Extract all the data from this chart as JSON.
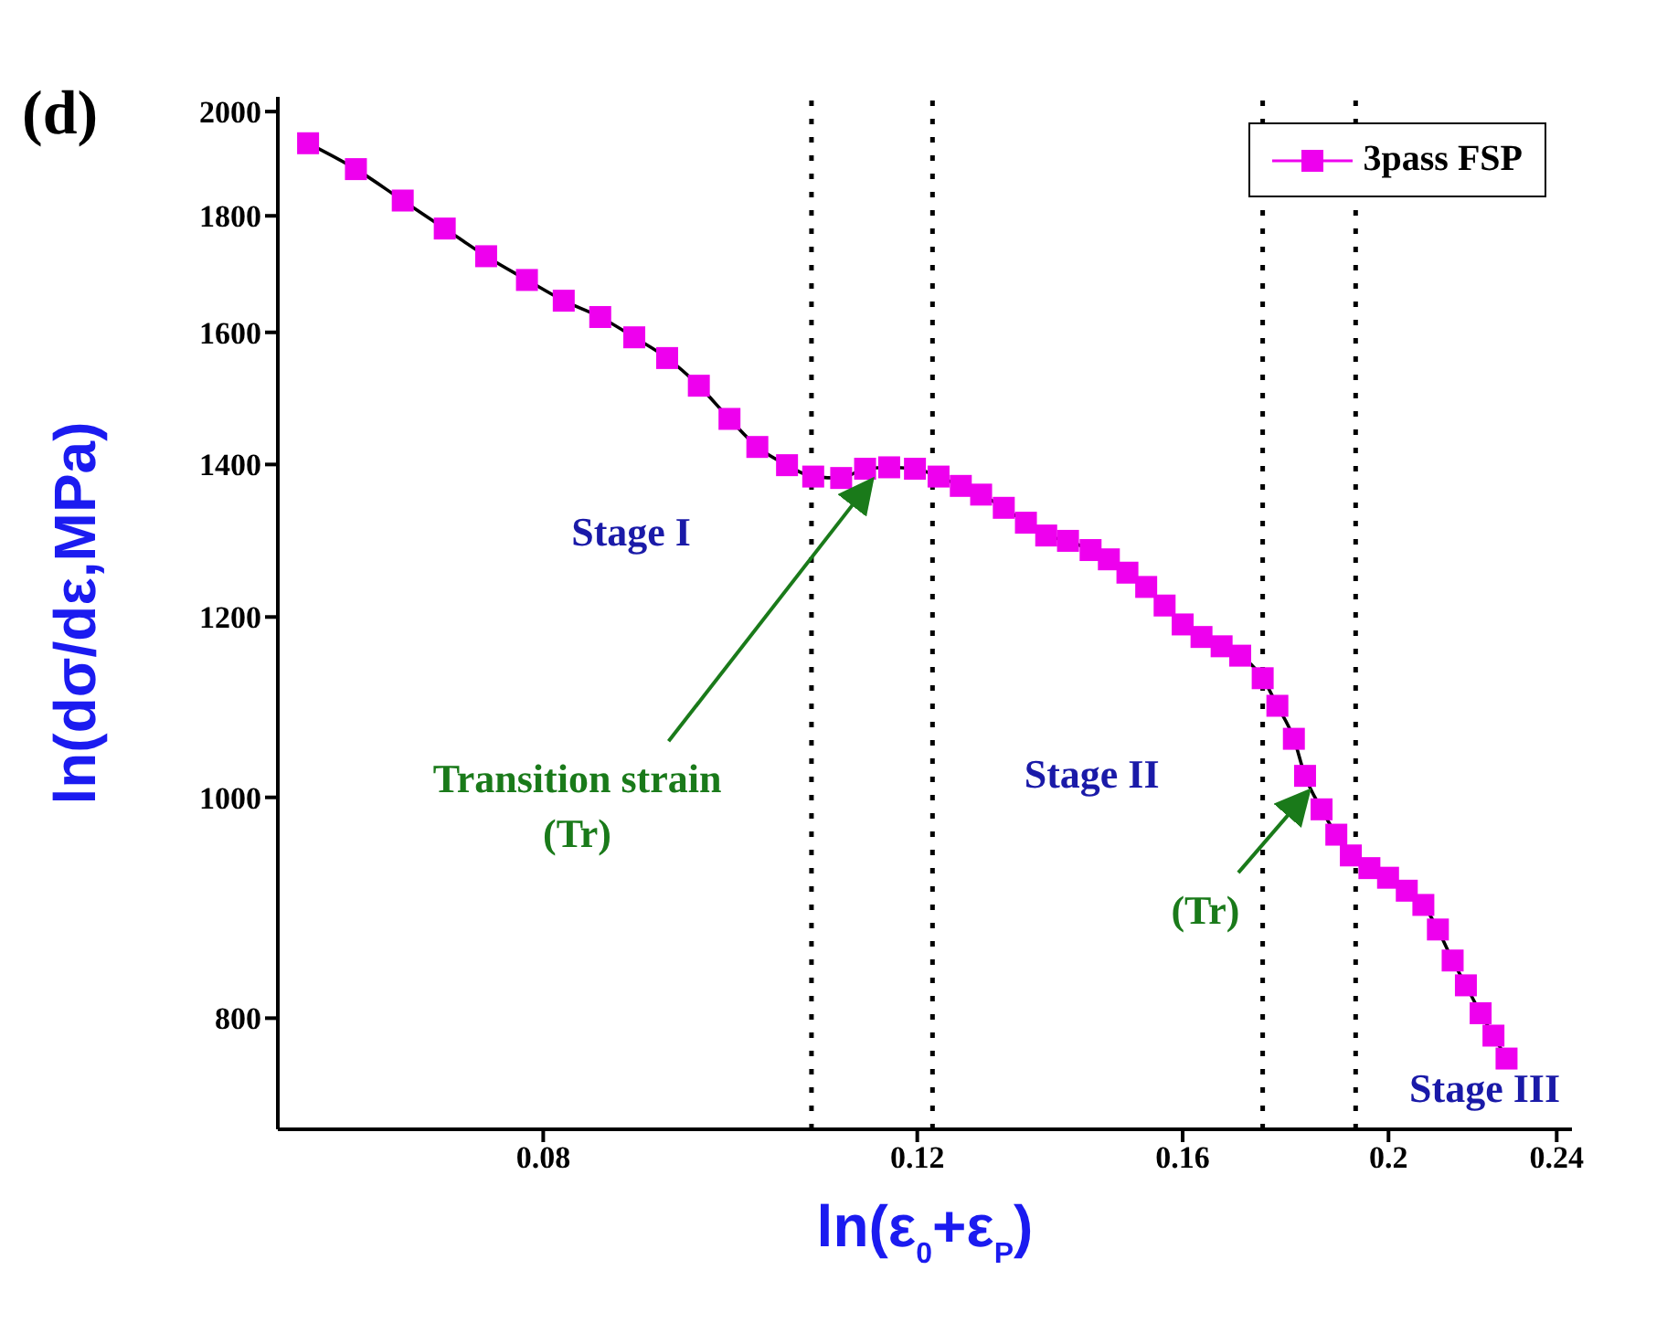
{
  "chart_data": {
    "type": "line",
    "title": "(d)",
    "xlabel": "ln(ε$_{0}$+ε$_{P}$)",
    "ylabel": "ln(dσ/dε,MPa)",
    "log": "xy",
    "xlim": [
      0.06,
      0.244
    ],
    "xticks": [
      0.08,
      0.12,
      0.16,
      0.2,
      0.24
    ],
    "ylim": [
      715,
      2030
    ],
    "yticks": [
      800,
      1000,
      1200,
      1400,
      1600,
      1800,
      2000
    ],
    "legend": "top right",
    "marker": "square",
    "line_style": "solid",
    "series": [
      {
        "name": "3pass FSP",
        "color": "#ee00ee",
        "x": [
          0.062,
          0.0653,
          0.0687,
          0.0719,
          0.0752,
          0.0786,
          0.0818,
          0.0851,
          0.0883,
          0.0915,
          0.0947,
          0.0979,
          0.1009,
          0.1042,
          0.1072,
          0.1105,
          0.1134,
          0.1164,
          0.1197,
          0.1228,
          0.1258,
          0.1286,
          0.1318,
          0.135,
          0.138,
          0.1413,
          0.1448,
          0.1477,
          0.1507,
          0.1538,
          0.1569,
          0.16,
          0.1633,
          0.1669,
          0.1703,
          0.1745,
          0.1773,
          0.1805,
          0.1827,
          0.186,
          0.189,
          0.192,
          0.1959,
          0.1999,
          0.204,
          0.2077,
          0.211,
          0.2144,
          0.2175,
          0.221,
          0.2241,
          0.2273
        ],
        "values": [
          1937,
          1887,
          1828,
          1777,
          1728,
          1687,
          1652,
          1625,
          1592,
          1559,
          1516,
          1466,
          1425,
          1399,
          1383,
          1381,
          1394,
          1396,
          1394,
          1383,
          1370,
          1358,
          1340,
          1320,
          1303,
          1296,
          1284,
          1272,
          1255,
          1237,
          1214,
          1191,
          1176,
          1165,
          1154,
          1128,
          1097,
          1061,
          1022,
          988,
          963,
          943,
          931,
          922,
          910,
          897,
          875,
          848,
          827,
          804,
          786,
          768
        ]
      }
    ],
    "ref_lines": [
      {
        "axis": "x",
        "value": 0.107,
        "color": "#000000",
        "line_style": "dotted"
      },
      {
        "axis": "x",
        "value": 0.122,
        "color": "#000000",
        "line_style": "dotted"
      },
      {
        "axis": "x",
        "value": 0.1745,
        "color": "#000000",
        "line_style": "dotted"
      },
      {
        "axis": "x",
        "value": 0.193,
        "color": "#000000",
        "line_style": "dotted"
      }
    ],
    "annotations": [
      "Stage I",
      "Stage II",
      "Stage III",
      {
        "text": "Transition strain\n(Tr)",
        "x": 0.114,
        "y": 1390
      },
      {
        "text": "(Tr)",
        "x": 0.183,
        "y": 1015
      }
    ]
  }
}
